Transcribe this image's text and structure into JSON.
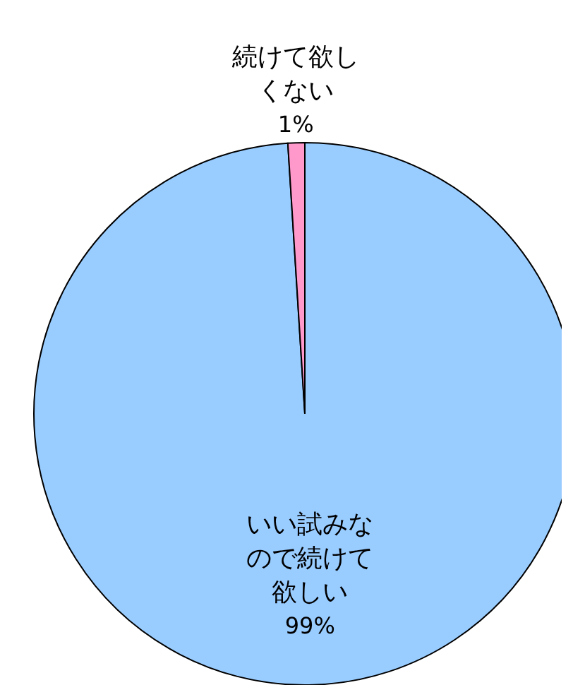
{
  "chart_data": {
    "type": "pie",
    "categories": [
      "いい試みなので続けて欲しい",
      "続けて欲しくない"
    ],
    "values": [
      99,
      1
    ],
    "colors": [
      "#99ccff",
      "#ff99cc"
    ],
    "value_labels": [
      "99%",
      "1%"
    ]
  }
}
